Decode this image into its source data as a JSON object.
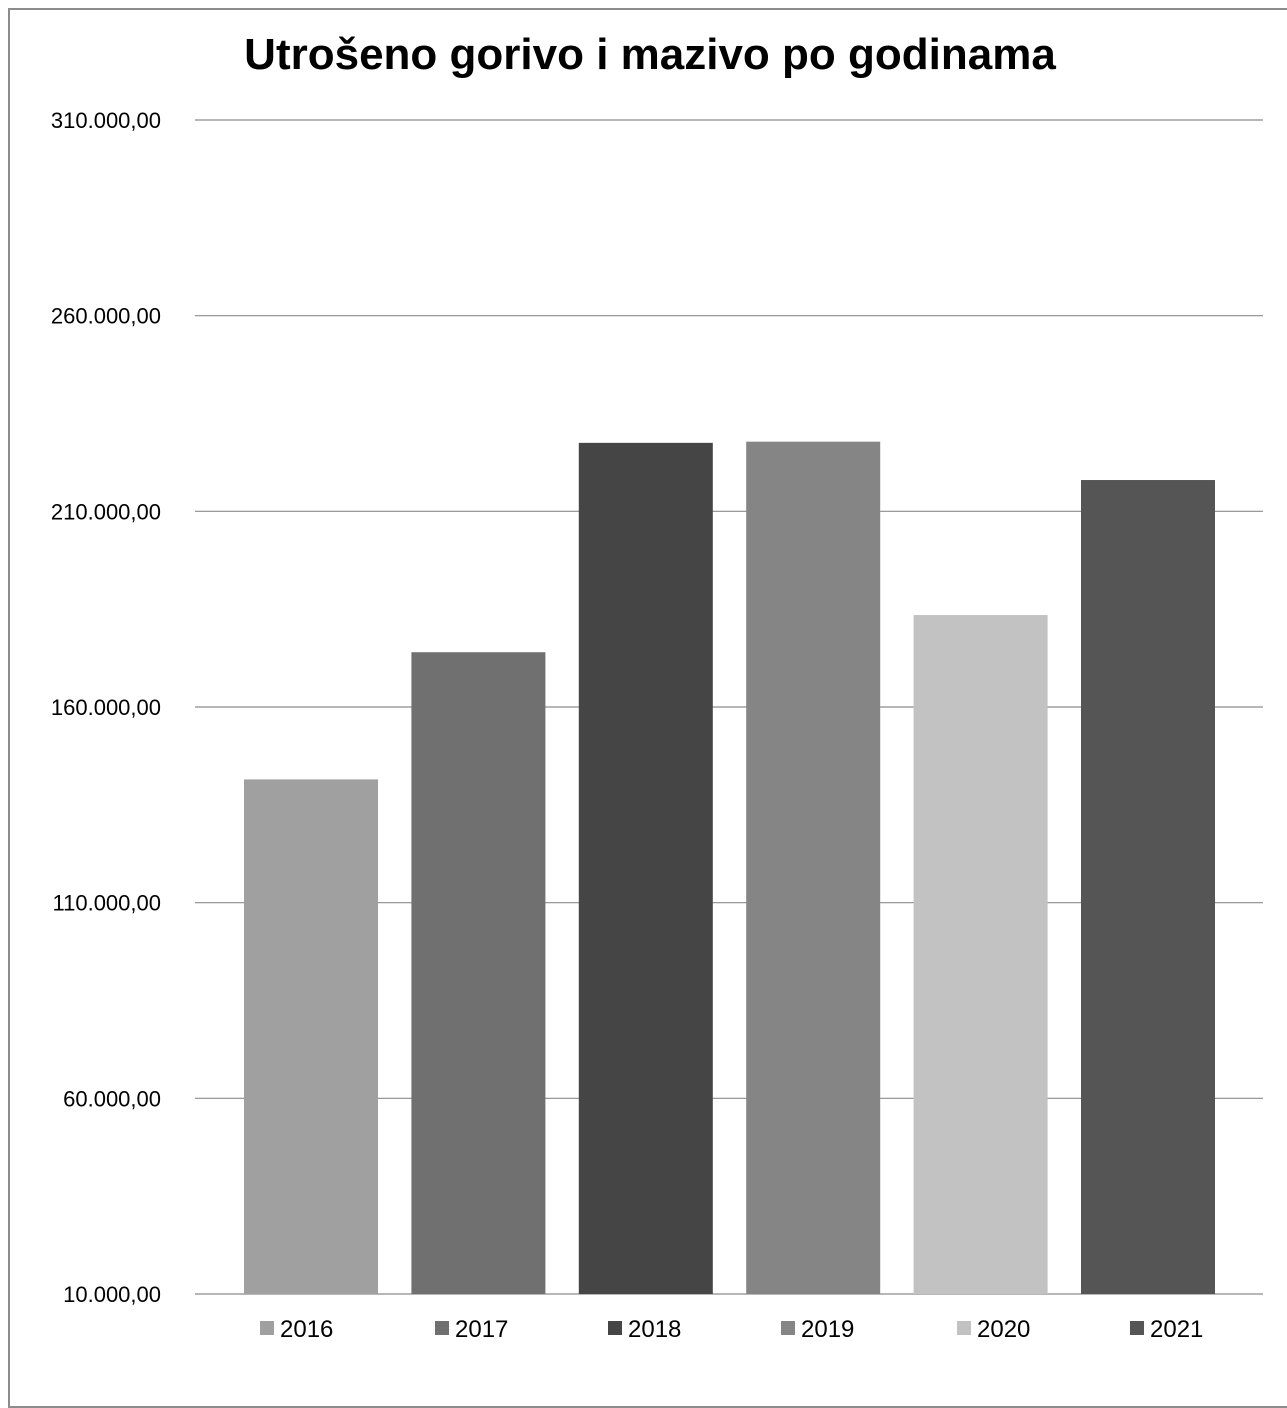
{
  "chart_data": {
    "type": "bar",
    "title": "Utrošeno gorivo i mazivo po godinama",
    "xlabel": "",
    "ylabel": "",
    "ylim": [
      10000,
      310000
    ],
    "yticks": [
      10000,
      60000,
      110000,
      160000,
      210000,
      260000,
      310000
    ],
    "ytick_labels": [
      "10.000,00",
      "60.000,00",
      "110.000,00",
      "160.000,00",
      "210.000,00",
      "260.000,00",
      "310.000,00"
    ],
    "grid": true,
    "legend_position": "bottom",
    "series": [
      {
        "name": "2016",
        "value": 141500,
        "color": "#a0a0a0"
      },
      {
        "name": "2017",
        "value": 174000,
        "color": "#707070"
      },
      {
        "name": "2018",
        "value": 227500,
        "color": "#454545"
      },
      {
        "name": "2019",
        "value": 227800,
        "color": "#858585"
      },
      {
        "name": "2020",
        "value": 183500,
        "color": "#c2c2c2"
      },
      {
        "name": "2021",
        "value": 218000,
        "color": "#555555"
      }
    ]
  }
}
